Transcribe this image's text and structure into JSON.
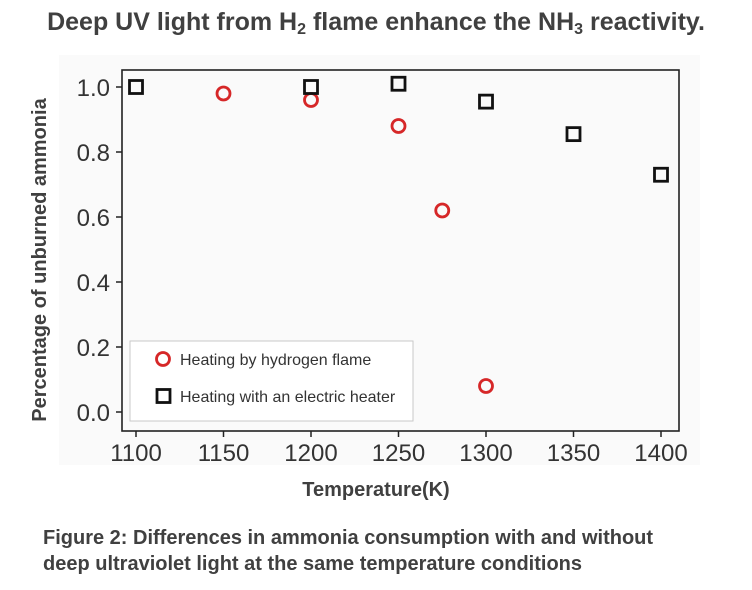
{
  "header": {
    "title_parts": [
      "Deep UV light from H",
      "2",
      " flame enhance the NH",
      "3",
      " reactivity."
    ]
  },
  "caption": {
    "line1": "Figure 2: Differences in ammonia consumption with and without",
    "line2": "deep ultraviolet light at the same temperature conditions"
  },
  "chart_data": {
    "type": "scatter",
    "title": "",
    "xlabel": "Temperature(K)",
    "ylabel": "Percentage of unburned ammonia",
    "xlim": [
      1100,
      1400
    ],
    "ylim": [
      0.0,
      1.0
    ],
    "xticks": [
      1100,
      1150,
      1200,
      1250,
      1300,
      1350,
      1400
    ],
    "yticks": [
      0.0,
      0.2,
      0.4,
      0.6,
      0.8,
      1.0
    ],
    "ytick_labels": [
      "0.0",
      "0.2",
      "0.4",
      "0.6",
      "0.8",
      "1.0"
    ],
    "legend_position": "bottom-left",
    "series": [
      {
        "name": "Heating by hydrogen flame",
        "marker": "circle",
        "color": "#d62728",
        "x": [
          1150,
          1200,
          1250,
          1275,
          1300
        ],
        "y": [
          0.98,
          0.96,
          0.88,
          0.62,
          0.08
        ]
      },
      {
        "name": "Heating with an electric heater",
        "marker": "square",
        "color": "#111111",
        "x": [
          1100,
          1200,
          1250,
          1300,
          1350,
          1400
        ],
        "y": [
          1.0,
          1.0,
          1.01,
          0.955,
          0.855,
          0.73
        ]
      }
    ]
  }
}
